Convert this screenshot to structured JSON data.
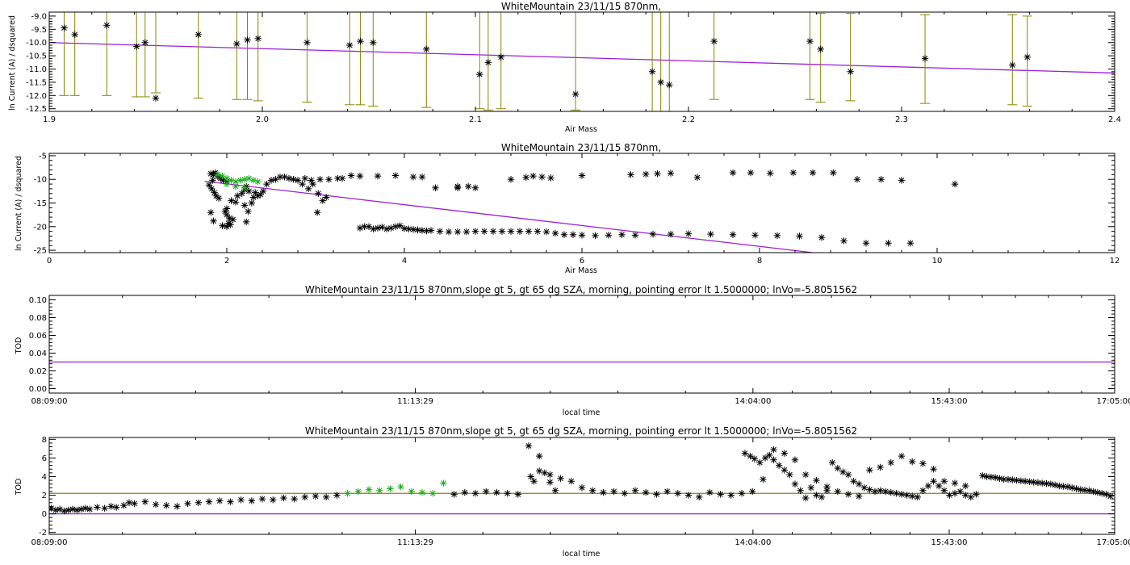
{
  "colors": {
    "data": "#000000",
    "selected": "#22aa22",
    "errorbar": "#8c8400",
    "fit": "#9a1fd6",
    "reference": "#8c8400",
    "axes": "#000000",
    "background": "#ffffff"
  },
  "chart_data": [
    {
      "type": "scatter",
      "title": "WhiteMountain 23/11/15 870nm,",
      "xlabel": "Air Mass",
      "ylabel": "ln Current (A) / dsquared",
      "xlim": [
        1.9,
        2.4
      ],
      "ylim": [
        -12.6,
        -8.85
      ],
      "xticks": [
        1.9,
        2.0,
        2.1,
        2.2,
        2.3,
        2.4
      ],
      "xtick_labels": [
        "1.9",
        "2.0",
        "2.1",
        "2.2",
        "2.3",
        "2.4"
      ],
      "yticks": [
        -12.5,
        -12.0,
        -11.5,
        -11.0,
        -10.5,
        -10.0,
        -9.5,
        -9.0
      ],
      "ytick_labels": [
        "-12.5",
        "-12.0",
        "-11.5",
        "-11.0",
        "-10.5",
        "-10.0",
        "-9.5",
        "-9.0"
      ],
      "grid": false,
      "series": [
        {
          "marker": "asterisk",
          "x": [
            1.907,
            1.912,
            1.927,
            1.941,
            1.945,
            1.95,
            1.97,
            1.988,
            1.993,
            1.998,
            2.021,
            2.041,
            2.046,
            2.052,
            2.077,
            2.102,
            2.106,
            2.112,
            2.147,
            2.183,
            2.187,
            2.191,
            2.212,
            2.257,
            2.262,
            2.276,
            2.311,
            2.352,
            2.359
          ],
          "y": [
            -9.45,
            -9.7,
            -9.35,
            -10.15,
            -10.0,
            -12.1,
            -9.7,
            -10.05,
            -9.9,
            -9.85,
            -10.0,
            -10.1,
            -9.95,
            -10.0,
            -10.25,
            -11.2,
            -10.75,
            -10.55,
            -11.95,
            -11.1,
            -11.5,
            -11.6,
            -9.95,
            -9.95,
            -10.25,
            -11.1,
            -10.6,
            -10.85,
            -10.55
          ],
          "err_lo": [
            -12.0,
            -12.0,
            -12.0,
            -12.05,
            -12.05,
            -11.9,
            -12.1,
            -12.15,
            -12.15,
            -12.2,
            -12.25,
            -12.35,
            -12.35,
            -12.4,
            -12.45,
            -12.5,
            -12.55,
            -12.5,
            -12.55,
            -12.65,
            -12.6,
            -12.65,
            -12.15,
            -12.15,
            -12.25,
            -12.2,
            -12.3,
            -12.35,
            -12.4
          ],
          "err_hi": [
            -8.6,
            -8.6,
            -8.6,
            -8.6,
            -8.6,
            -8.6,
            -8.6,
            -8.6,
            -8.6,
            -8.6,
            -8.6,
            -8.6,
            -8.6,
            -8.6,
            -8.6,
            -8.6,
            -8.7,
            -8.6,
            -8.6,
            -8.6,
            -8.6,
            -8.6,
            -8.8,
            -8.85,
            -8.9,
            -8.9,
            -8.95,
            -8.95,
            -9.0
          ]
        }
      ],
      "fit_line": {
        "x": [
          1.9,
          2.4
        ],
        "y": [
          -10.0,
          -11.15
        ]
      }
    },
    {
      "type": "scatter",
      "title": "WhiteMountain 23/11/15 870nm,",
      "xlabel": "Air Mass",
      "ylabel": "ln Current (A) / dsquared",
      "xlim": [
        0,
        12
      ],
      "ylim": [
        -25.5,
        -4.5
      ],
      "xticks": [
        0,
        2,
        4,
        6,
        8,
        10,
        12
      ],
      "xtick_labels": [
        "0",
        "2",
        "4",
        "6",
        "8",
        "10",
        "12"
      ],
      "yticks": [
        -25,
        -20,
        -15,
        -10,
        -5
      ],
      "ytick_labels": [
        "-25",
        "-20",
        "-15",
        "-10",
        "-5"
      ],
      "grid": false,
      "series": [
        {
          "marker": "asterisk",
          "x": [
            1.82,
            1.85,
            1.87,
            1.9,
            1.93,
            1.96,
            2.0,
            1.8,
            1.83,
            1.86,
            1.88,
            1.91,
            1.84,
            1.82,
            1.85,
            1.95,
            2.0,
            2.03,
            1.98,
            2.02,
            2.0,
            2.04,
            2.07,
            2.0,
            2.05,
            2.1,
            2.12,
            2.17,
            2.2,
            2.22,
            2.25,
            2.2,
            2.24,
            2.22,
            2.28,
            2.3,
            2.32,
            2.35,
            2.38,
            2.41,
            2.45,
            2.5,
            2.55,
            2.6,
            2.65,
            2.7,
            2.75,
            2.8,
            2.88,
            2.95,
            3.05,
            3.15,
            3.25,
            3.4,
            2.85,
            2.92,
            2.97,
            3.03,
            3.08,
            3.12,
            3.02,
            3.3,
            3.5,
            3.7,
            3.9,
            4.1,
            4.2,
            4.6,
            4.72,
            4.8,
            5.2,
            5.37,
            5.45,
            5.55,
            5.65,
            6.0,
            6.55,
            6.72,
            6.85,
            7.0,
            7.3,
            7.7,
            7.9,
            8.12,
            8.38,
            8.6,
            8.83,
            9.1,
            9.37,
            9.6,
            10.2,
            4.35,
            4.6
          ],
          "y": [
            -8.8,
            -9.0,
            -8.6,
            -9.4,
            -9.8,
            -10.2,
            -10.5,
            -11.2,
            -12.0,
            -12.8,
            -13.5,
            -14.0,
            -10.2,
            -17.0,
            -18.8,
            -19.8,
            -17.5,
            -18.2,
            -16.8,
            -19.3,
            -20.0,
            -19.6,
            -18.5,
            -16.2,
            -14.5,
            -14.8,
            -13.5,
            -13.0,
            -12.2,
            -11.5,
            -12.5,
            -15.5,
            -16.8,
            -19.0,
            -15.0,
            -13.8,
            -12.8,
            -13.5,
            -13.2,
            -12.5,
            -11.0,
            -10.2,
            -10.0,
            -9.5,
            -9.5,
            -9.8,
            -10.0,
            -10.2,
            -9.8,
            -10.2,
            -10.0,
            -10.0,
            -9.8,
            -9.2,
            -11.0,
            -12.0,
            -11.0,
            -13.0,
            -14.5,
            -13.8,
            -17.0,
            -9.8,
            -9.3,
            -9.3,
            -9.2,
            -9.5,
            -9.5,
            -11.8,
            -11.5,
            -11.8,
            -10.0,
            -9.6,
            -9.3,
            -9.5,
            -9.7,
            -9.2,
            -9.0,
            -8.9,
            -8.8,
            -8.7,
            -9.6,
            -8.6,
            -8.6,
            -8.7,
            -8.6,
            -8.6,
            -8.6,
            -10.0,
            -10.0,
            -10.2,
            -11.0,
            -11.8,
            -11.5
          ]
        },
        {
          "marker": "asterisk",
          "x": [
            3.5,
            3.6,
            3.7,
            3.8,
            3.9,
            4.0,
            4.1,
            4.2,
            4.3,
            4.4,
            4.5,
            4.6,
            4.7,
            4.8,
            4.9,
            5.0,
            5.1,
            5.2,
            5.3,
            5.4,
            5.5,
            5.6,
            5.7,
            5.8,
            5.9,
            6.0,
            6.15,
            6.3,
            6.45,
            6.6,
            6.8,
            7.0,
            7.2,
            7.45,
            7.7,
            7.95,
            8.2,
            8.45,
            8.7,
            8.95,
            9.2,
            9.45,
            9.7,
            3.55,
            3.65,
            3.75,
            3.85,
            3.95,
            4.05,
            4.15,
            4.25
          ],
          "y": [
            -20.3,
            -20.0,
            -20.3,
            -20.5,
            -20.0,
            -20.4,
            -20.6,
            -20.8,
            -20.8,
            -21.0,
            -21.1,
            -21.1,
            -21.1,
            -21.0,
            -21.0,
            -21.0,
            -21.0,
            -21.0,
            -21.0,
            -21.0,
            -21.0,
            -21.1,
            -21.4,
            -21.7,
            -21.7,
            -21.8,
            -21.9,
            -21.8,
            -21.7,
            -21.8,
            -21.6,
            -21.6,
            -21.5,
            -21.6,
            -21.7,
            -21.8,
            -21.9,
            -22.0,
            -22.3,
            -23.0,
            -23.5,
            -23.5,
            -23.5,
            -20.0,
            -20.5,
            -20.1,
            -20.3,
            -19.8,
            -20.5,
            -20.7,
            -20.9
          ]
        },
        {
          "marker": "asterisk",
          "selected": true,
          "x": [
            1.9,
            1.95,
            2.0,
            2.05,
            2.1,
            2.15,
            2.2,
            2.25,
            2.3,
            2.35,
            2.0,
            2.1,
            2.2
          ],
          "y": [
            -9.0,
            -9.3,
            -9.8,
            -10.2,
            -10.5,
            -10.2,
            -10.0,
            -9.8,
            -10.2,
            -10.5,
            -11.0,
            -11.5,
            -11.8
          ]
        }
      ],
      "fit_line": {
        "x": [
          1.75,
          8.6
        ],
        "y": [
          -10.4,
          -25.5
        ]
      }
    },
    {
      "type": "line",
      "title": "WhiteMountain 23/11/15 870nm,slope gt 5, gt 65 dg SZA, morning, pointing error lt 1.5000000; lnVo=-5.8051562",
      "xlabel": "local time",
      "ylabel": "TOD",
      "xlim": [
        0,
        1
      ],
      "ylim": [
        -0.005,
        0.105
      ],
      "xticks": [
        0,
        0.3436,
        0.6605,
        0.8447,
        1
      ],
      "xtick_labels": [
        "08:09:00",
        "11:13:29",
        "14:04:00",
        "15:43:00",
        "17:05:00"
      ],
      "yticks": [
        0.0,
        0.02,
        0.04,
        0.06,
        0.08,
        0.1
      ],
      "ytick_labels": [
        "0.00",
        "0.02",
        "0.04",
        "0.06",
        "0.08",
        "0.10"
      ],
      "grid": false,
      "fit_line": {
        "x": [
          0,
          1
        ],
        "y": [
          0.03,
          0.03
        ]
      }
    },
    {
      "type": "scatter",
      "title": "WhiteMountain 23/11/15 870nm,slope gt 5, gt 65 dg SZA, morning, pointing error lt 1.5000000; lnVo=-5.8051562",
      "xlabel": "local time",
      "ylabel": "TOD",
      "xlim": [
        0,
        1
      ],
      "ylim": [
        -2.2,
        8.2
      ],
      "xticks": [
        0,
        0.3436,
        0.6605,
        0.8447,
        1
      ],
      "xtick_labels": [
        "08:09:00",
        "11:13:29",
        "14:04:00",
        "15:43:00",
        "17:05:00"
      ],
      "yticks": [
        -2,
        0,
        2,
        4,
        6,
        8
      ],
      "ytick_labels": [
        "-2",
        "0",
        "2",
        "4",
        "6",
        "8"
      ],
      "grid": false,
      "series": [
        {
          "marker": "asterisk",
          "x": [
            0.002,
            0.006,
            0.01,
            0.014,
            0.018,
            0.022,
            0.026,
            0.03,
            0.034,
            0.038,
            0.045,
            0.052,
            0.058,
            0.063,
            0.07,
            0.075,
            0.08,
            0.09,
            0.1,
            0.11,
            0.12,
            0.13,
            0.14,
            0.15,
            0.16,
            0.17,
            0.18,
            0.19,
            0.2,
            0.21,
            0.22,
            0.23,
            0.24,
            0.25,
            0.26,
            0.27,
            0.38,
            0.39,
            0.4,
            0.41,
            0.42,
            0.43,
            0.44,
            0.45,
            0.46,
            0.47,
            0.48,
            0.49,
            0.5,
            0.51,
            0.52,
            0.53,
            0.54,
            0.55,
            0.56,
            0.57,
            0.58,
            0.59,
            0.6,
            0.61,
            0.62,
            0.63,
            0.64,
            0.65,
            0.66,
            0.67,
            0.68,
            0.69,
            0.7,
            0.71,
            0.72,
            0.73,
            0.74,
            0.75,
            0.76,
            0.77,
            0.78,
            0.79,
            0.8,
            0.81,
            0.82,
            0.83,
            0.84,
            0.85,
            0.86,
            0.452,
            0.455,
            0.46,
            0.465,
            0.47,
            0.475,
            0.653,
            0.658,
            0.662,
            0.667,
            0.672,
            0.676,
            0.68,
            0.685,
            0.69,
            0.695,
            0.7,
            0.705,
            0.71,
            0.715,
            0.72,
            0.725,
            0.73,
            0.735,
            0.74,
            0.745,
            0.75,
            0.755,
            0.76,
            0.765,
            0.77,
            0.775,
            0.78,
            0.785,
            0.79,
            0.795,
            0.8,
            0.805,
            0.81,
            0.815,
            0.82,
            0.825,
            0.83,
            0.835,
            0.84,
            0.845,
            0.85,
            0.855,
            0.86,
            0.865,
            0.87
          ],
          "y": [
            0.6,
            0.4,
            0.5,
            0.3,
            0.4,
            0.5,
            0.4,
            0.5,
            0.6,
            0.5,
            0.7,
            0.6,
            0.8,
            0.7,
            0.9,
            1.2,
            1.1,
            1.3,
            1.0,
            0.9,
            0.8,
            1.1,
            1.2,
            1.3,
            1.4,
            1.3,
            1.5,
            1.4,
            1.6,
            1.5,
            1.7,
            1.6,
            1.8,
            1.9,
            1.8,
            2.0,
            2.1,
            2.3,
            2.2,
            2.4,
            2.3,
            2.2,
            2.1,
            7.3,
            4.6,
            4.2,
            3.8,
            3.5,
            2.8,
            2.5,
            2.3,
            2.4,
            2.2,
            2.5,
            2.3,
            2.1,
            2.4,
            2.2,
            2.0,
            1.8,
            2.3,
            2.1,
            2.0,
            2.2,
            2.4,
            3.7,
            6.9,
            6.5,
            5.8,
            4.2,
            3.6,
            2.9,
            2.4,
            2.1,
            1.9,
            4.7,
            5.0,
            5.5,
            6.2,
            5.6,
            5.4,
            4.8,
            3.5,
            3.3,
            3.0,
            4.0,
            3.5,
            6.2,
            4.4,
            3.4,
            2.5,
            6.5,
            6.2,
            5.9,
            5.5,
            6.0,
            6.3,
            5.8,
            5.2,
            4.7,
            4.2,
            3.2,
            2.5,
            1.7,
            2.8,
            2.0,
            1.8,
            2.5,
            5.5,
            4.9,
            4.5,
            4.2,
            3.5,
            3.2,
            2.8,
            2.6,
            2.4,
            2.5,
            2.4,
            2.3,
            2.2,
            2.1,
            2.0,
            1.9,
            1.8,
            2.5,
            3.0,
            3.5,
            3.0,
            2.5,
            2.0,
            2.2,
            2.4,
            2.0,
            1.8,
            2.1
          ]
        },
        {
          "marker": "asterisk",
          "x": [
            0.876,
            0.88,
            0.884,
            0.888,
            0.892,
            0.896,
            0.9,
            0.904,
            0.908,
            0.912,
            0.916,
            0.92,
            0.924,
            0.928,
            0.932,
            0.936,
            0.94,
            0.944,
            0.948,
            0.952,
            0.956,
            0.96,
            0.964,
            0.968,
            0.972,
            0.976,
            0.98,
            0.984,
            0.988,
            0.992,
            0.996
          ],
          "y": [
            4.1,
            4.0,
            3.95,
            3.9,
            3.8,
            3.7,
            3.7,
            3.65,
            3.6,
            3.55,
            3.5,
            3.45,
            3.4,
            3.35,
            3.3,
            3.25,
            3.2,
            3.1,
            3.0,
            2.95,
            2.9,
            2.8,
            2.7,
            2.6,
            2.55,
            2.5,
            2.4,
            2.3,
            2.2,
            2.1,
            1.9
          ]
        },
        {
          "marker": "asterisk",
          "selected": true,
          "x": [
            0.28,
            0.29,
            0.3,
            0.31,
            0.32,
            0.33,
            0.34,
            0.35,
            0.36,
            0.37
          ],
          "y": [
            2.2,
            2.4,
            2.6,
            2.5,
            2.7,
            2.9,
            2.4,
            2.3,
            2.2,
            3.3
          ]
        }
      ],
      "fit_line": {
        "x": [
          0,
          1
        ],
        "y": [
          0.0,
          0.0
        ]
      },
      "reference_line": {
        "x": [
          0,
          1
        ],
        "y": [
          2.2,
          2.2
        ]
      }
    }
  ]
}
